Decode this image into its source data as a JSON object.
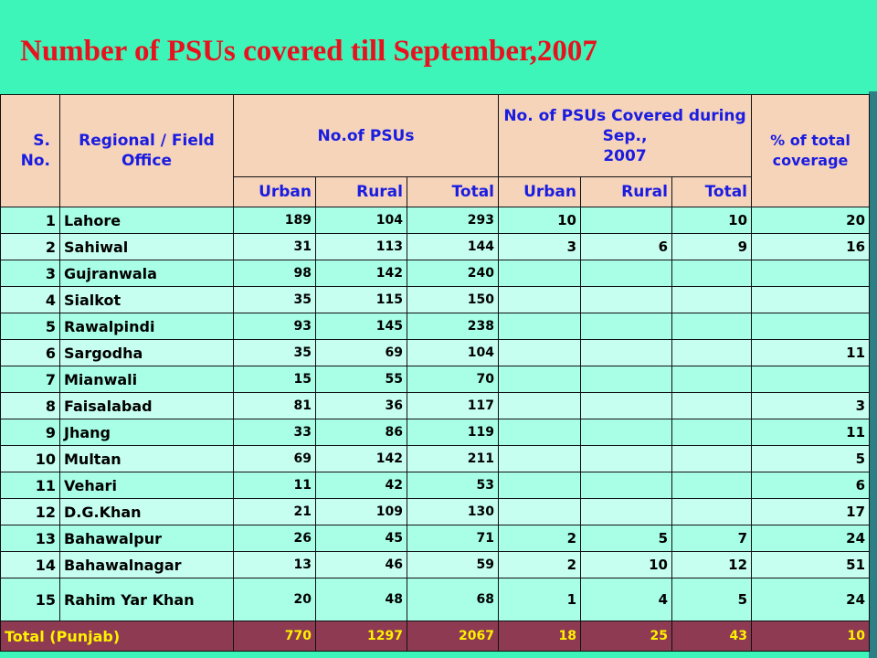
{
  "title": "Number of PSUs covered  till September,2007",
  "headers": {
    "sno": "S. No.",
    "office": "Regional / Field Office",
    "no_psus": "No.of PSUs",
    "covered_line1": "No. of PSUs Covered during Sep.,",
    "covered_line2": "2007",
    "pct": "% of total coverage",
    "urban": "Urban",
    "rural": "Rural",
    "total": "Total"
  },
  "rows": [
    {
      "sno": "1",
      "office": "Lahore",
      "urban": "189",
      "rural": "104",
      "total": "293",
      "c_urban": "10",
      "c_rural": "",
      "c_total": "10",
      "pct": "20"
    },
    {
      "sno": "2",
      "office": "Sahiwal",
      "urban": "31",
      "rural": "113",
      "total": "144",
      "c_urban": "3",
      "c_rural": "6",
      "c_total": "9",
      "pct": "16"
    },
    {
      "sno": "3",
      "office": "Gujranwala",
      "urban": "98",
      "rural": "142",
      "total": "240",
      "c_urban": "",
      "c_rural": "",
      "c_total": "",
      "pct": ""
    },
    {
      "sno": "4",
      "office": "Sialkot",
      "urban": "35",
      "rural": "115",
      "total": "150",
      "c_urban": "",
      "c_rural": "",
      "c_total": "",
      "pct": ""
    },
    {
      "sno": "5",
      "office": "Rawalpindi",
      "urban": "93",
      "rural": "145",
      "total": "238",
      "c_urban": "",
      "c_rural": "",
      "c_total": "",
      "pct": ""
    },
    {
      "sno": "6",
      "office": "Sargodha",
      "urban": "35",
      "rural": "69",
      "total": "104",
      "c_urban": "",
      "c_rural": "",
      "c_total": "",
      "pct": "11"
    },
    {
      "sno": "7",
      "office": "Mianwali",
      "urban": "15",
      "rural": "55",
      "total": "70",
      "c_urban": "",
      "c_rural": "",
      "c_total": "",
      "pct": ""
    },
    {
      "sno": "8",
      "office": "Faisalabad",
      "urban": "81",
      "rural": "36",
      "total": "117",
      "c_urban": "",
      "c_rural": "",
      "c_total": "",
      "pct": "3"
    },
    {
      "sno": "9",
      "office": "Jhang",
      "urban": "33",
      "rural": "86",
      "total": "119",
      "c_urban": "",
      "c_rural": "",
      "c_total": "",
      "pct": "11"
    },
    {
      "sno": "10",
      "office": "Multan",
      "urban": "69",
      "rural": "142",
      "total": "211",
      "c_urban": "",
      "c_rural": "",
      "c_total": "",
      "pct": "5"
    },
    {
      "sno": "11",
      "office": "Vehari",
      "urban": "11",
      "rural": "42",
      "total": "53",
      "c_urban": "",
      "c_rural": "",
      "c_total": "",
      "pct": "6"
    },
    {
      "sno": "12",
      "office": "D.G.Khan",
      "urban": "21",
      "rural": "109",
      "total": "130",
      "c_urban": "",
      "c_rural": "",
      "c_total": "",
      "pct": "17"
    },
    {
      "sno": "13",
      "office": "Bahawalpur",
      "urban": "26",
      "rural": "45",
      "total": "71",
      "c_urban": "2",
      "c_rural": "5",
      "c_total": "7",
      "pct": "24"
    },
    {
      "sno": "14",
      "office": "Bahawalnagar",
      "urban": "13",
      "rural": "46",
      "total": "59",
      "c_urban": "2",
      "c_rural": "10",
      "c_total": "12",
      "pct": "51"
    },
    {
      "sno": "15",
      "office": "Rahim Yar Khan",
      "urban": "20",
      "rural": "48",
      "total": "68",
      "c_urban": "1",
      "c_rural": "4",
      "c_total": "5",
      "pct": "24"
    }
  ],
  "total_row": {
    "label": "Total (Punjab)",
    "urban": "770",
    "rural": "1297",
    "total": "2067",
    "c_urban": "18",
    "c_rural": "25",
    "c_total": "43",
    "pct": "10"
  }
}
